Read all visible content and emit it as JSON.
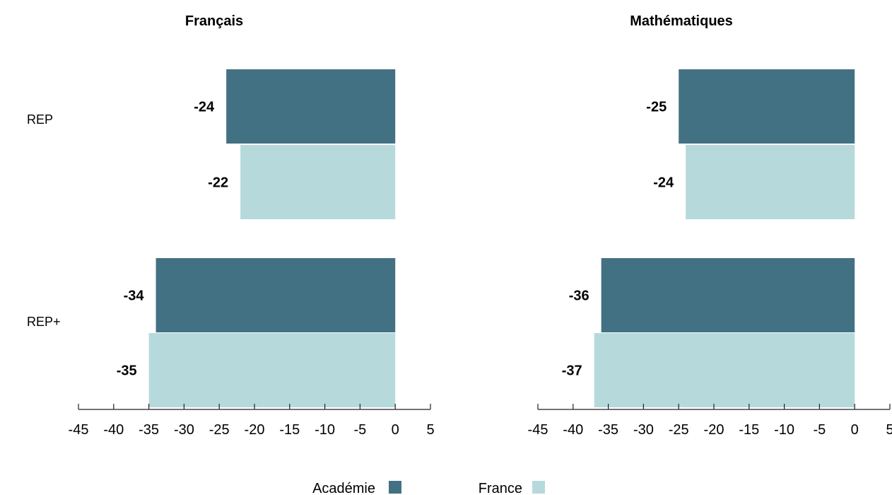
{
  "chart_data": {
    "type": "bar",
    "orientation": "horizontal",
    "categories": [
      "REP",
      "REP+"
    ],
    "legend": {
      "position": "bottom",
      "entries": [
        {
          "name": "Académie",
          "color": "#437184"
        },
        {
          "name": "France",
          "color": "#b6d9dc"
        }
      ]
    },
    "xlim": [
      -45,
      5
    ],
    "xticks": [
      "-45",
      "-40",
      "-35",
      "-30",
      "-25",
      "-20",
      "-15",
      "-10",
      "-5",
      "0",
      "5"
    ],
    "grid": false,
    "panels": [
      {
        "title": "Français",
        "series": [
          {
            "name": "Académie",
            "values": [
              -24,
              -34
            ],
            "labels": [
              "-24",
              "-34"
            ]
          },
          {
            "name": "France",
            "values": [
              -22,
              -35
            ],
            "labels": [
              "-22",
              "-35"
            ]
          }
        ]
      },
      {
        "title": "Mathématiques",
        "series": [
          {
            "name": "Académie",
            "values": [
              -25,
              -36
            ],
            "labels": [
              "-25",
              "-36"
            ]
          },
          {
            "name": "France",
            "values": [
              -24,
              -37
            ],
            "labels": [
              "-24",
              "-37"
            ]
          }
        ]
      }
    ]
  }
}
